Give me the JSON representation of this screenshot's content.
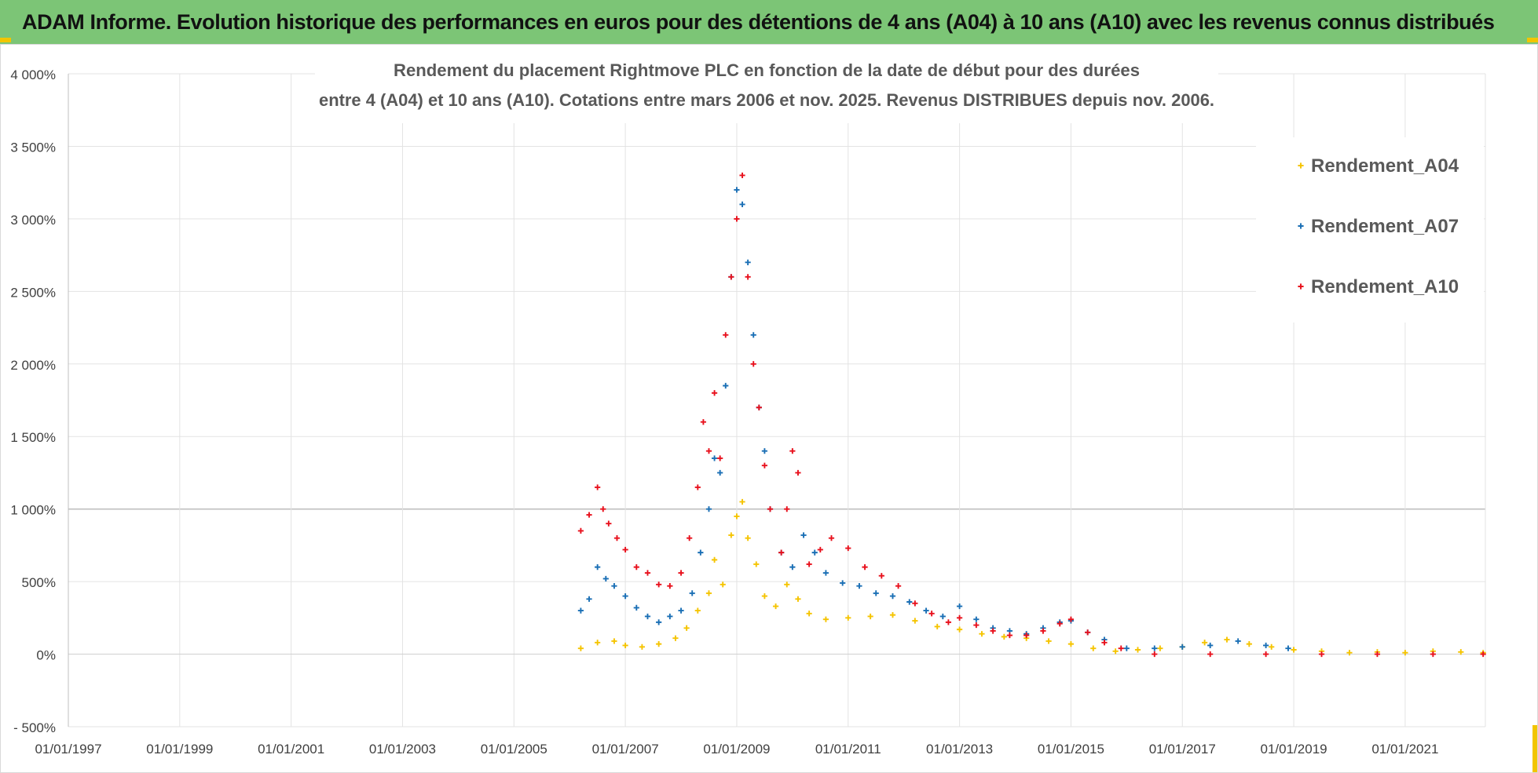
{
  "header": {
    "title": "ADAM Informe. Evolution historique des performances en euros pour des détentions de 4 ans (A04) à 10 ans (A10) avec les revenus connus distribués"
  },
  "chart_data": {
    "type": "scatter",
    "title_line1": "Rendement du placement Rightmove PLC en fonction de la date de début pour des durées",
    "title_line2": "entre 4 (A04) et 10 ans (A10). Cotations entre mars 2006 et nov. 2025. Revenus DISTRIBUES depuis nov. 2006.",
    "xlabel": "",
    "ylabel": "",
    "xlim": [
      1997.0,
      2022.44
    ],
    "ylim": [
      -500,
      4000
    ],
    "x_ticks": [
      "01/01/1997",
      "01/01/1999",
      "01/01/2001",
      "01/01/2003",
      "01/01/2005",
      "01/01/2007",
      "01/01/2009",
      "01/01/2011",
      "01/01/2013",
      "01/01/2015",
      "01/01/2017",
      "01/01/2019",
      "01/01/2021"
    ],
    "y_ticks": [
      "- 500%",
      "0%",
      "500%",
      "1 000%",
      "1 500%",
      "2 000%",
      "2 500%",
      "3 000%",
      "3 500%",
      "4 000%"
    ],
    "legend_position": "top-right",
    "series": [
      {
        "name": "Rendement_A04",
        "color": "#f5c400",
        "x": [
          2006.2,
          2006.5,
          2006.8,
          2007.0,
          2007.3,
          2007.6,
          2007.9,
          2008.1,
          2008.3,
          2008.5,
          2008.6,
          2008.75,
          2008.9,
          2009.0,
          2009.1,
          2009.2,
          2009.35,
          2009.5,
          2009.7,
          2009.9,
          2010.1,
          2010.3,
          2010.6,
          2011.0,
          2011.4,
          2011.8,
          2012.2,
          2012.6,
          2013.0,
          2013.4,
          2013.8,
          2014.2,
          2014.6,
          2015.0,
          2015.4,
          2015.8,
          2016.2,
          2016.6,
          2017.0,
          2017.4,
          2017.8,
          2018.2,
          2018.6,
          2019.0,
          2019.5,
          2020.0,
          2020.5,
          2021.0,
          2021.5,
          2022.0,
          2022.4
        ],
        "y": [
          40,
          80,
          90,
          60,
          50,
          70,
          110,
          180,
          300,
          420,
          650,
          480,
          820,
          950,
          1050,
          800,
          620,
          400,
          330,
          480,
          380,
          280,
          240,
          250,
          260,
          270,
          230,
          190,
          170,
          140,
          120,
          110,
          90,
          70,
          40,
          20,
          30,
          40,
          50,
          80,
          100,
          70,
          50,
          30,
          20,
          10,
          15,
          10,
          20,
          15,
          10
        ]
      },
      {
        "name": "Rendement_A07",
        "color": "#1a6fb5",
        "x": [
          2006.2,
          2006.35,
          2006.5,
          2006.65,
          2006.8,
          2007.0,
          2007.2,
          2007.4,
          2007.6,
          2007.8,
          2008.0,
          2008.2,
          2008.35,
          2008.5,
          2008.6,
          2008.7,
          2008.8,
          2008.9,
          2009.0,
          2009.1,
          2009.2,
          2009.3,
          2009.4,
          2009.5,
          2009.6,
          2009.8,
          2010.0,
          2010.2,
          2010.4,
          2010.6,
          2010.9,
          2011.2,
          2011.5,
          2011.8,
          2012.1,
          2012.4,
          2012.7,
          2013.0,
          2013.3,
          2013.6,
          2013.9,
          2014.2,
          2014.5,
          2014.8,
          2015.0,
          2015.3,
          2015.6,
          2016.0,
          2016.5,
          2017.0,
          2017.5,
          2018.0,
          2018.5,
          2018.9
        ],
        "y": [
          300,
          380,
          600,
          520,
          470,
          400,
          320,
          260,
          220,
          260,
          300,
          420,
          700,
          1000,
          1350,
          1250,
          1850,
          2600,
          3200,
          3100,
          2700,
          2200,
          1700,
          1400,
          1000,
          700,
          600,
          820,
          700,
          560,
          490,
          470,
          420,
          400,
          360,
          300,
          260,
          330,
          240,
          180,
          160,
          140,
          180,
          220,
          230,
          150,
          100,
          40,
          40,
          50,
          60,
          90,
          60,
          40
        ]
      },
      {
        "name": "Rendement_A10",
        "color": "#e8101c",
        "x": [
          2006.2,
          2006.35,
          2006.5,
          2006.6,
          2006.7,
          2006.85,
          2007.0,
          2007.2,
          2007.4,
          2007.6,
          2007.8,
          2008.0,
          2008.15,
          2008.3,
          2008.4,
          2008.5,
          2008.6,
          2008.7,
          2008.8,
          2008.9,
          2009.0,
          2009.1,
          2009.2,
          2009.3,
          2009.4,
          2009.5,
          2009.6,
          2009.8,
          2009.9,
          2010.0,
          2010.1,
          2010.3,
          2010.5,
          2010.7,
          2011.0,
          2011.3,
          2011.6,
          2011.9,
          2012.2,
          2012.5,
          2012.8,
          2013.0,
          2013.3,
          2013.6,
          2013.9,
          2014.2,
          2014.5,
          2014.8,
          2015.0,
          2015.3,
          2015.6,
          2015.9,
          2016.5,
          2017.5,
          2018.5,
          2019.5,
          2020.5,
          2021.5,
          2022.4
        ],
        "y": [
          850,
          960,
          1150,
          1000,
          900,
          800,
          720,
          600,
          560,
          480,
          470,
          560,
          800,
          1150,
          1600,
          1400,
          1800,
          1350,
          2200,
          2600,
          3000,
          3300,
          2600,
          2000,
          1700,
          1300,
          1000,
          700,
          1000,
          1400,
          1250,
          620,
          720,
          800,
          730,
          600,
          540,
          470,
          350,
          280,
          220,
          250,
          200,
          160,
          130,
          130,
          160,
          210,
          240,
          150,
          80,
          40,
          0,
          0,
          0,
          0,
          0,
          0,
          0
        ]
      }
    ]
  }
}
